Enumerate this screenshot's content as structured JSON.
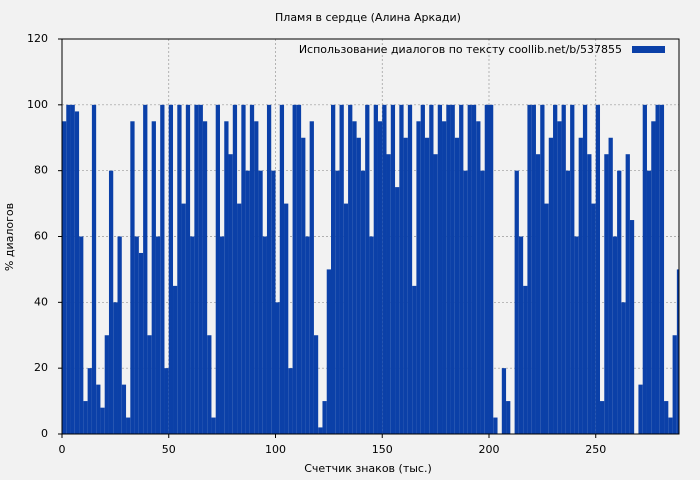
{
  "chart_data": {
    "type": "bar",
    "title": "Пламя в сердце (Алина Аркади)",
    "x_label": "Счетчик знаков (тыс.)",
    "y_label": "% диалогов",
    "x": [
      0,
      2,
      4,
      6,
      8,
      10,
      12,
      14,
      16,
      18,
      20,
      22,
      24,
      26,
      28,
      30,
      32,
      34,
      36,
      38,
      40,
      42,
      44,
      46,
      48,
      50,
      52,
      54,
      56,
      58,
      60,
      62,
      64,
      66,
      68,
      70,
      72,
      74,
      76,
      78,
      80,
      82,
      84,
      86,
      88,
      90,
      92,
      94,
      96,
      98,
      100,
      102,
      104,
      106,
      108,
      110,
      112,
      114,
      116,
      118,
      120,
      122,
      124,
      126,
      128,
      130,
      132,
      134,
      136,
      138,
      140,
      142,
      144,
      146,
      148,
      150,
      152,
      154,
      156,
      158,
      160,
      162,
      164,
      166,
      168,
      170,
      172,
      174,
      176,
      178,
      180,
      182,
      184,
      186,
      188,
      190,
      192,
      194,
      196,
      198,
      200,
      202,
      204,
      206,
      208,
      210,
      212,
      214,
      216,
      218,
      220,
      222,
      224,
      226,
      228,
      230,
      232,
      234,
      236,
      238,
      240,
      242,
      244,
      246,
      248,
      250,
      252,
      254,
      256,
      258,
      260,
      262,
      264,
      266,
      268,
      270,
      272,
      274,
      276,
      278,
      280,
      282,
      284,
      286,
      288
    ],
    "series": [
      {
        "name": "Использование диалогов по тексту  coollib.net/b/537855",
        "color": "#0b40a8",
        "values": [
          95,
          100,
          100,
          98,
          60,
          10,
          20,
          100,
          15,
          8,
          30,
          80,
          40,
          60,
          15,
          5,
          95,
          60,
          55,
          100,
          30,
          95,
          60,
          100,
          20,
          100,
          45,
          100,
          70,
          100,
          60,
          100,
          100,
          95,
          30,
          5,
          100,
          60,
          95,
          85,
          100,
          70,
          100,
          80,
          100,
          95,
          80,
          60,
          100,
          80,
          40,
          100,
          70,
          20,
          100,
          100,
          90,
          60,
          95,
          30,
          2,
          10,
          50,
          100,
          80,
          100,
          70,
          100,
          95,
          90,
          80,
          100,
          60,
          100,
          95,
          100,
          85,
          100,
          75,
          100,
          90,
          100,
          45,
          95,
          100,
          90,
          100,
          85,
          100,
          95,
          100,
          100,
          90,
          100,
          80,
          100,
          100,
          95,
          80,
          100,
          100,
          5,
          0,
          20,
          10,
          0,
          80,
          60,
          45,
          100,
          100,
          85,
          100,
          70,
          90,
          100,
          95,
          100,
          80,
          100,
          60,
          90,
          100,
          85,
          70,
          100,
          10,
          85,
          90,
          60,
          80,
          40,
          85,
          65,
          0,
          15,
          100,
          80,
          95,
          100,
          100,
          10,
          5,
          30,
          50
        ]
      }
    ],
    "xlim": [
      0,
      289
    ],
    "ylim": [
      0,
      120
    ],
    "xticks": [
      0,
      50,
      100,
      150,
      200,
      250
    ],
    "yticks": [
      0,
      20,
      40,
      60,
      80,
      100,
      120
    ],
    "grid": true
  }
}
